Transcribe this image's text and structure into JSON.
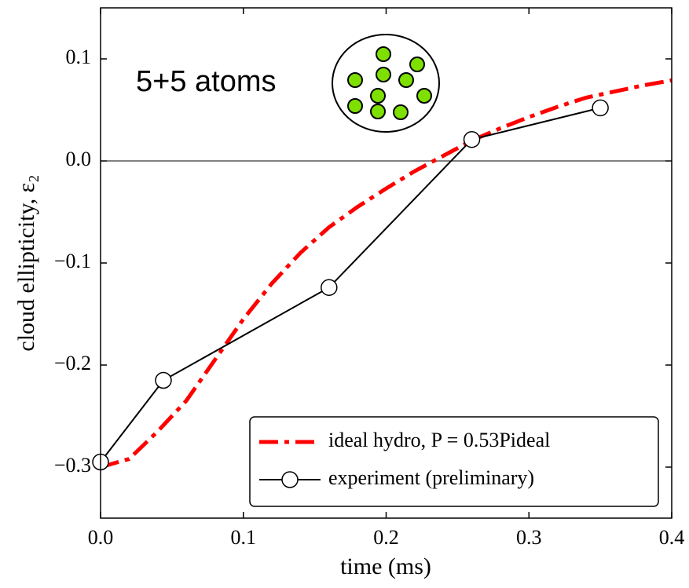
{
  "chart_data": {
    "type": "line",
    "xlabel": "time (ms)",
    "ylabel": "cloud ellipticity, ε₂",
    "annotation": "5+5 atoms",
    "xlim": [
      0,
      0.4
    ],
    "ylim": [
      -0.35,
      0.15
    ],
    "xticks": [
      {
        "value": 0,
        "label": "0.0"
      },
      0.1,
      0.2,
      0.3,
      0.4
    ],
    "yticks": [
      {
        "value": -0.3,
        "label": "−0.3"
      },
      {
        "value": -0.2,
        "label": "−0.2"
      },
      {
        "value": -0.1,
        "label": "−0.1"
      },
      {
        "value": 0,
        "label": "0.0"
      },
      0.1
    ],
    "hline": 0,
    "legend": "lower right",
    "series": [
      {
        "name": "ideal hydro, P = 0.53Pideal",
        "color": "#ff0000",
        "linestyle": "dashdot",
        "marker": "none",
        "x": [
          0,
          0.02,
          0.04,
          0.06,
          0.08,
          0.1,
          0.12,
          0.14,
          0.16,
          0.18,
          0.2,
          0.22,
          0.24,
          0.26,
          0.28,
          0.3,
          0.32,
          0.34,
          0.36,
          0.38,
          0.4
        ],
        "values": [
          -0.3,
          -0.292,
          -0.265,
          -0.235,
          -0.195,
          -0.155,
          -0.12,
          -0.09,
          -0.065,
          -0.045,
          -0.027,
          -0.01,
          0.005,
          0.02,
          0.032,
          0.043,
          0.053,
          0.062,
          0.068,
          0.074,
          0.079
        ]
      },
      {
        "name": "experiment (preliminary)",
        "color": "#000000",
        "linestyle": "solid",
        "marker": "circle",
        "x": [
          0,
          0.044,
          0.16,
          0.26,
          0.35
        ],
        "values": [
          -0.295,
          -0.215,
          -0.124,
          0.021,
          0.052
        ]
      }
    ]
  }
}
